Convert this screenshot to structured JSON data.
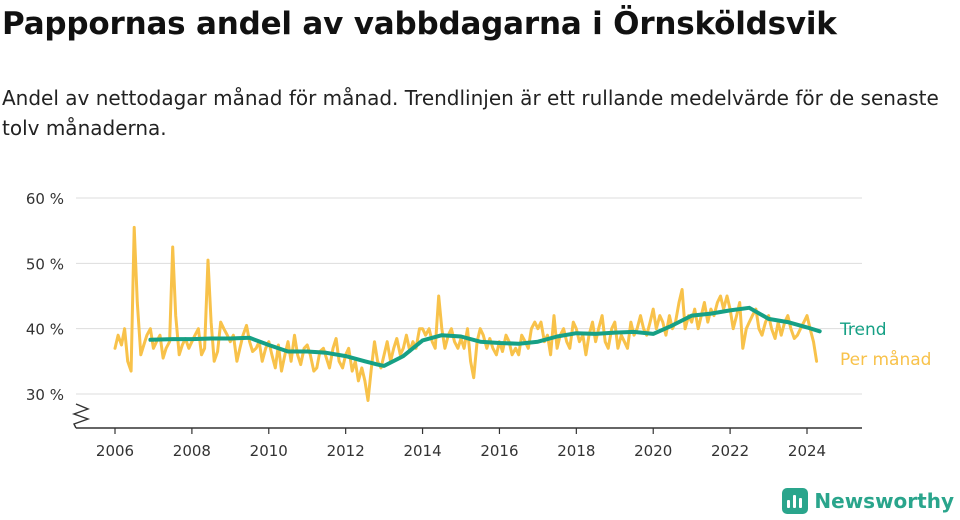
{
  "header": {
    "title": "Pappornas andel av vabbdagarna i Örnsköldsvik",
    "subtitle": "Andel av nettodagar månad för månad. Trendlinjen är ett rullande medelvärde för de senaste tolv månaderna."
  },
  "brand": {
    "name": "Newsworthy"
  },
  "chart_data": {
    "type": "line",
    "y_ticks": [
      30,
      40,
      50,
      60
    ],
    "y_tick_labels": [
      "30 %",
      "40 %",
      "50 %",
      "60 %"
    ],
    "x_ticks": [
      2006,
      2008,
      2010,
      2012,
      2014,
      2016,
      2018,
      2020,
      2022,
      2024
    ],
    "x_tick_labels": [
      "2006",
      "2008",
      "2010",
      "2012",
      "2014",
      "2016",
      "2018",
      "2020",
      "2022",
      "2024"
    ],
    "ylim": [
      25,
      60
    ],
    "xlim": [
      2005.1,
      2025.3
    ],
    "grid": true,
    "y_axis_break": true,
    "colors": {
      "trend": "#16a085",
      "monthly": "#f8c24a",
      "grid": "#dddddd",
      "axis": "#333333"
    },
    "series": [
      {
        "name": "Per månad",
        "key": "monthly",
        "points": [
          [
            2006.0,
            37
          ],
          [
            2006.08,
            39
          ],
          [
            2006.17,
            37.5
          ],
          [
            2006.25,
            40
          ],
          [
            2006.33,
            35
          ],
          [
            2006.42,
            33.5
          ],
          [
            2006.5,
            55.5
          ],
          [
            2006.58,
            44
          ],
          [
            2006.67,
            36
          ],
          [
            2006.75,
            37.5
          ],
          [
            2006.83,
            39
          ],
          [
            2006.92,
            40
          ],
          [
            2007.0,
            37
          ],
          [
            2007.08,
            38
          ],
          [
            2007.17,
            39
          ],
          [
            2007.25,
            35.5
          ],
          [
            2007.33,
            37
          ],
          [
            2007.42,
            38
          ],
          [
            2007.5,
            52.5
          ],
          [
            2007.58,
            42
          ],
          [
            2007.67,
            36
          ],
          [
            2007.75,
            37.5
          ],
          [
            2007.83,
            38.5
          ],
          [
            2007.92,
            37
          ],
          [
            2008.0,
            38
          ],
          [
            2008.08,
            39
          ],
          [
            2008.17,
            40
          ],
          [
            2008.25,
            36
          ],
          [
            2008.33,
            37
          ],
          [
            2008.42,
            50.5
          ],
          [
            2008.5,
            41
          ],
          [
            2008.58,
            35
          ],
          [
            2008.67,
            36.5
          ],
          [
            2008.75,
            41
          ],
          [
            2008.83,
            40
          ],
          [
            2008.92,
            39
          ],
          [
            2009.0,
            38
          ],
          [
            2009.08,
            39
          ],
          [
            2009.17,
            35
          ],
          [
            2009.25,
            37
          ],
          [
            2009.33,
            39
          ],
          [
            2009.42,
            40.5
          ],
          [
            2009.5,
            38
          ],
          [
            2009.58,
            36.5
          ],
          [
            2009.67,
            37
          ],
          [
            2009.75,
            38
          ],
          [
            2009.83,
            35
          ],
          [
            2009.92,
            37
          ],
          [
            2010.0,
            38
          ],
          [
            2010.08,
            36
          ],
          [
            2010.17,
            34
          ],
          [
            2010.25,
            37.5
          ],
          [
            2010.33,
            33.5
          ],
          [
            2010.42,
            36
          ],
          [
            2010.5,
            38
          ],
          [
            2010.58,
            35
          ],
          [
            2010.67,
            39
          ],
          [
            2010.75,
            36
          ],
          [
            2010.83,
            34.5
          ],
          [
            2010.92,
            37
          ],
          [
            2011.0,
            37.5
          ],
          [
            2011.08,
            36
          ],
          [
            2011.17,
            33.5
          ],
          [
            2011.25,
            34
          ],
          [
            2011.33,
            36.5
          ],
          [
            2011.42,
            37
          ],
          [
            2011.5,
            35.5
          ],
          [
            2011.58,
            34
          ],
          [
            2011.67,
            37
          ],
          [
            2011.75,
            38.5
          ],
          [
            2011.83,
            35
          ],
          [
            2011.92,
            34
          ],
          [
            2012.0,
            36
          ],
          [
            2012.08,
            37
          ],
          [
            2012.17,
            33.5
          ],
          [
            2012.25,
            35
          ],
          [
            2012.33,
            32
          ],
          [
            2012.42,
            34
          ],
          [
            2012.5,
            32
          ],
          [
            2012.58,
            29
          ],
          [
            2012.67,
            34
          ],
          [
            2012.75,
            38
          ],
          [
            2012.83,
            35
          ],
          [
            2012.92,
            34
          ],
          [
            2013.0,
            36
          ],
          [
            2013.08,
            38
          ],
          [
            2013.17,
            35
          ],
          [
            2013.25,
            37
          ],
          [
            2013.33,
            38.5
          ],
          [
            2013.42,
            36
          ],
          [
            2013.5,
            37
          ],
          [
            2013.58,
            39
          ],
          [
            2013.67,
            36.5
          ],
          [
            2013.75,
            38
          ],
          [
            2013.83,
            37
          ],
          [
            2013.92,
            40
          ],
          [
            2014.0,
            40
          ],
          [
            2014.08,
            39
          ],
          [
            2014.17,
            40
          ],
          [
            2014.25,
            38
          ],
          [
            2014.33,
            37
          ],
          [
            2014.42,
            45
          ],
          [
            2014.5,
            40
          ],
          [
            2014.58,
            37
          ],
          [
            2014.67,
            39
          ],
          [
            2014.75,
            40
          ],
          [
            2014.83,
            38
          ],
          [
            2014.92,
            37
          ],
          [
            2015.0,
            38.5
          ],
          [
            2015.08,
            37
          ],
          [
            2015.17,
            40
          ],
          [
            2015.25,
            35
          ],
          [
            2015.33,
            32.5
          ],
          [
            2015.42,
            38
          ],
          [
            2015.5,
            40
          ],
          [
            2015.58,
            39
          ],
          [
            2015.67,
            37
          ],
          [
            2015.75,
            38.5
          ],
          [
            2015.83,
            37
          ],
          [
            2015.92,
            36
          ],
          [
            2016.0,
            38
          ],
          [
            2016.08,
            36.5
          ],
          [
            2016.17,
            39
          ],
          [
            2016.25,
            38
          ],
          [
            2016.33,
            36
          ],
          [
            2016.42,
            37
          ],
          [
            2016.5,
            36
          ],
          [
            2016.58,
            39
          ],
          [
            2016.67,
            38
          ],
          [
            2016.75,
            37
          ],
          [
            2016.83,
            40
          ],
          [
            2016.92,
            41
          ],
          [
            2017.0,
            40
          ],
          [
            2017.08,
            41
          ],
          [
            2017.17,
            38
          ],
          [
            2017.25,
            39
          ],
          [
            2017.33,
            36
          ],
          [
            2017.42,
            42
          ],
          [
            2017.5,
            37
          ],
          [
            2017.58,
            39
          ],
          [
            2017.67,
            40
          ],
          [
            2017.75,
            38
          ],
          [
            2017.83,
            37
          ],
          [
            2017.92,
            41
          ],
          [
            2018.0,
            40
          ],
          [
            2018.08,
            38
          ],
          [
            2018.17,
            39
          ],
          [
            2018.25,
            36
          ],
          [
            2018.33,
            39
          ],
          [
            2018.42,
            41
          ],
          [
            2018.5,
            38
          ],
          [
            2018.58,
            40
          ],
          [
            2018.67,
            42
          ],
          [
            2018.75,
            38
          ],
          [
            2018.83,
            37
          ],
          [
            2018.92,
            40
          ],
          [
            2019.0,
            41
          ],
          [
            2019.08,
            37
          ],
          [
            2019.17,
            39
          ],
          [
            2019.25,
            38
          ],
          [
            2019.33,
            37
          ],
          [
            2019.42,
            41
          ],
          [
            2019.5,
            39
          ],
          [
            2019.58,
            40
          ],
          [
            2019.67,
            42
          ],
          [
            2019.75,
            40
          ],
          [
            2019.83,
            39
          ],
          [
            2019.92,
            41
          ],
          [
            2020.0,
            43
          ],
          [
            2020.08,
            40
          ],
          [
            2020.17,
            42
          ],
          [
            2020.25,
            41
          ],
          [
            2020.33,
            39
          ],
          [
            2020.42,
            42
          ],
          [
            2020.5,
            40
          ],
          [
            2020.58,
            41
          ],
          [
            2020.67,
            44
          ],
          [
            2020.75,
            46
          ],
          [
            2020.83,
            40
          ],
          [
            2020.92,
            42
          ],
          [
            2021.0,
            41
          ],
          [
            2021.08,
            43
          ],
          [
            2021.17,
            40
          ],
          [
            2021.25,
            42
          ],
          [
            2021.33,
            44
          ],
          [
            2021.42,
            41
          ],
          [
            2021.5,
            43
          ],
          [
            2021.58,
            42
          ],
          [
            2021.67,
            44
          ],
          [
            2021.75,
            45
          ],
          [
            2021.83,
            43
          ],
          [
            2021.92,
            45
          ],
          [
            2022.0,
            43
          ],
          [
            2022.08,
            40
          ],
          [
            2022.17,
            42
          ],
          [
            2022.25,
            44
          ],
          [
            2022.33,
            37
          ],
          [
            2022.42,
            40
          ],
          [
            2022.5,
            41
          ],
          [
            2022.58,
            42
          ],
          [
            2022.67,
            43
          ],
          [
            2022.75,
            40
          ],
          [
            2022.83,
            39
          ],
          [
            2022.92,
            41
          ],
          [
            2023.0,
            42
          ],
          [
            2023.08,
            40
          ],
          [
            2023.17,
            38.5
          ],
          [
            2023.25,
            41
          ],
          [
            2023.33,
            39
          ],
          [
            2023.42,
            41
          ],
          [
            2023.5,
            42
          ],
          [
            2023.58,
            40
          ],
          [
            2023.67,
            38.5
          ],
          [
            2023.75,
            39
          ],
          [
            2023.83,
            40
          ],
          [
            2023.92,
            41
          ],
          [
            2024.0,
            42
          ],
          [
            2024.08,
            40
          ],
          [
            2024.17,
            38
          ],
          [
            2024.25,
            35
          ]
        ]
      },
      {
        "name": "Trend",
        "key": "trend",
        "points": [
          [
            2006.92,
            38.3
          ],
          [
            2007.5,
            38.4
          ],
          [
            2008.0,
            38.4
          ],
          [
            2008.5,
            38.5
          ],
          [
            2009.0,
            38.5
          ],
          [
            2009.5,
            38.6
          ],
          [
            2010.0,
            37.5
          ],
          [
            2010.5,
            36.5
          ],
          [
            2011.0,
            36.5
          ],
          [
            2011.5,
            36.3
          ],
          [
            2012.0,
            35.8
          ],
          [
            2012.5,
            35.0
          ],
          [
            2012.83,
            34.5
          ],
          [
            2013.0,
            34.3
          ],
          [
            2013.5,
            35.8
          ],
          [
            2014.0,
            38.2
          ],
          [
            2014.5,
            39.0
          ],
          [
            2015.0,
            38.8
          ],
          [
            2015.5,
            38.0
          ],
          [
            2016.0,
            37.8
          ],
          [
            2016.5,
            37.7
          ],
          [
            2017.0,
            38.0
          ],
          [
            2017.5,
            38.8
          ],
          [
            2018.0,
            39.3
          ],
          [
            2018.5,
            39.2
          ],
          [
            2019.0,
            39.4
          ],
          [
            2019.5,
            39.5
          ],
          [
            2020.0,
            39.2
          ],
          [
            2020.5,
            40.5
          ],
          [
            2021.0,
            42.0
          ],
          [
            2021.5,
            42.3
          ],
          [
            2022.0,
            42.8
          ],
          [
            2022.5,
            43.2
          ],
          [
            2023.0,
            41.5
          ],
          [
            2023.5,
            41.0
          ],
          [
            2024.0,
            40.2
          ],
          [
            2024.33,
            39.6
          ]
        ]
      }
    ]
  }
}
